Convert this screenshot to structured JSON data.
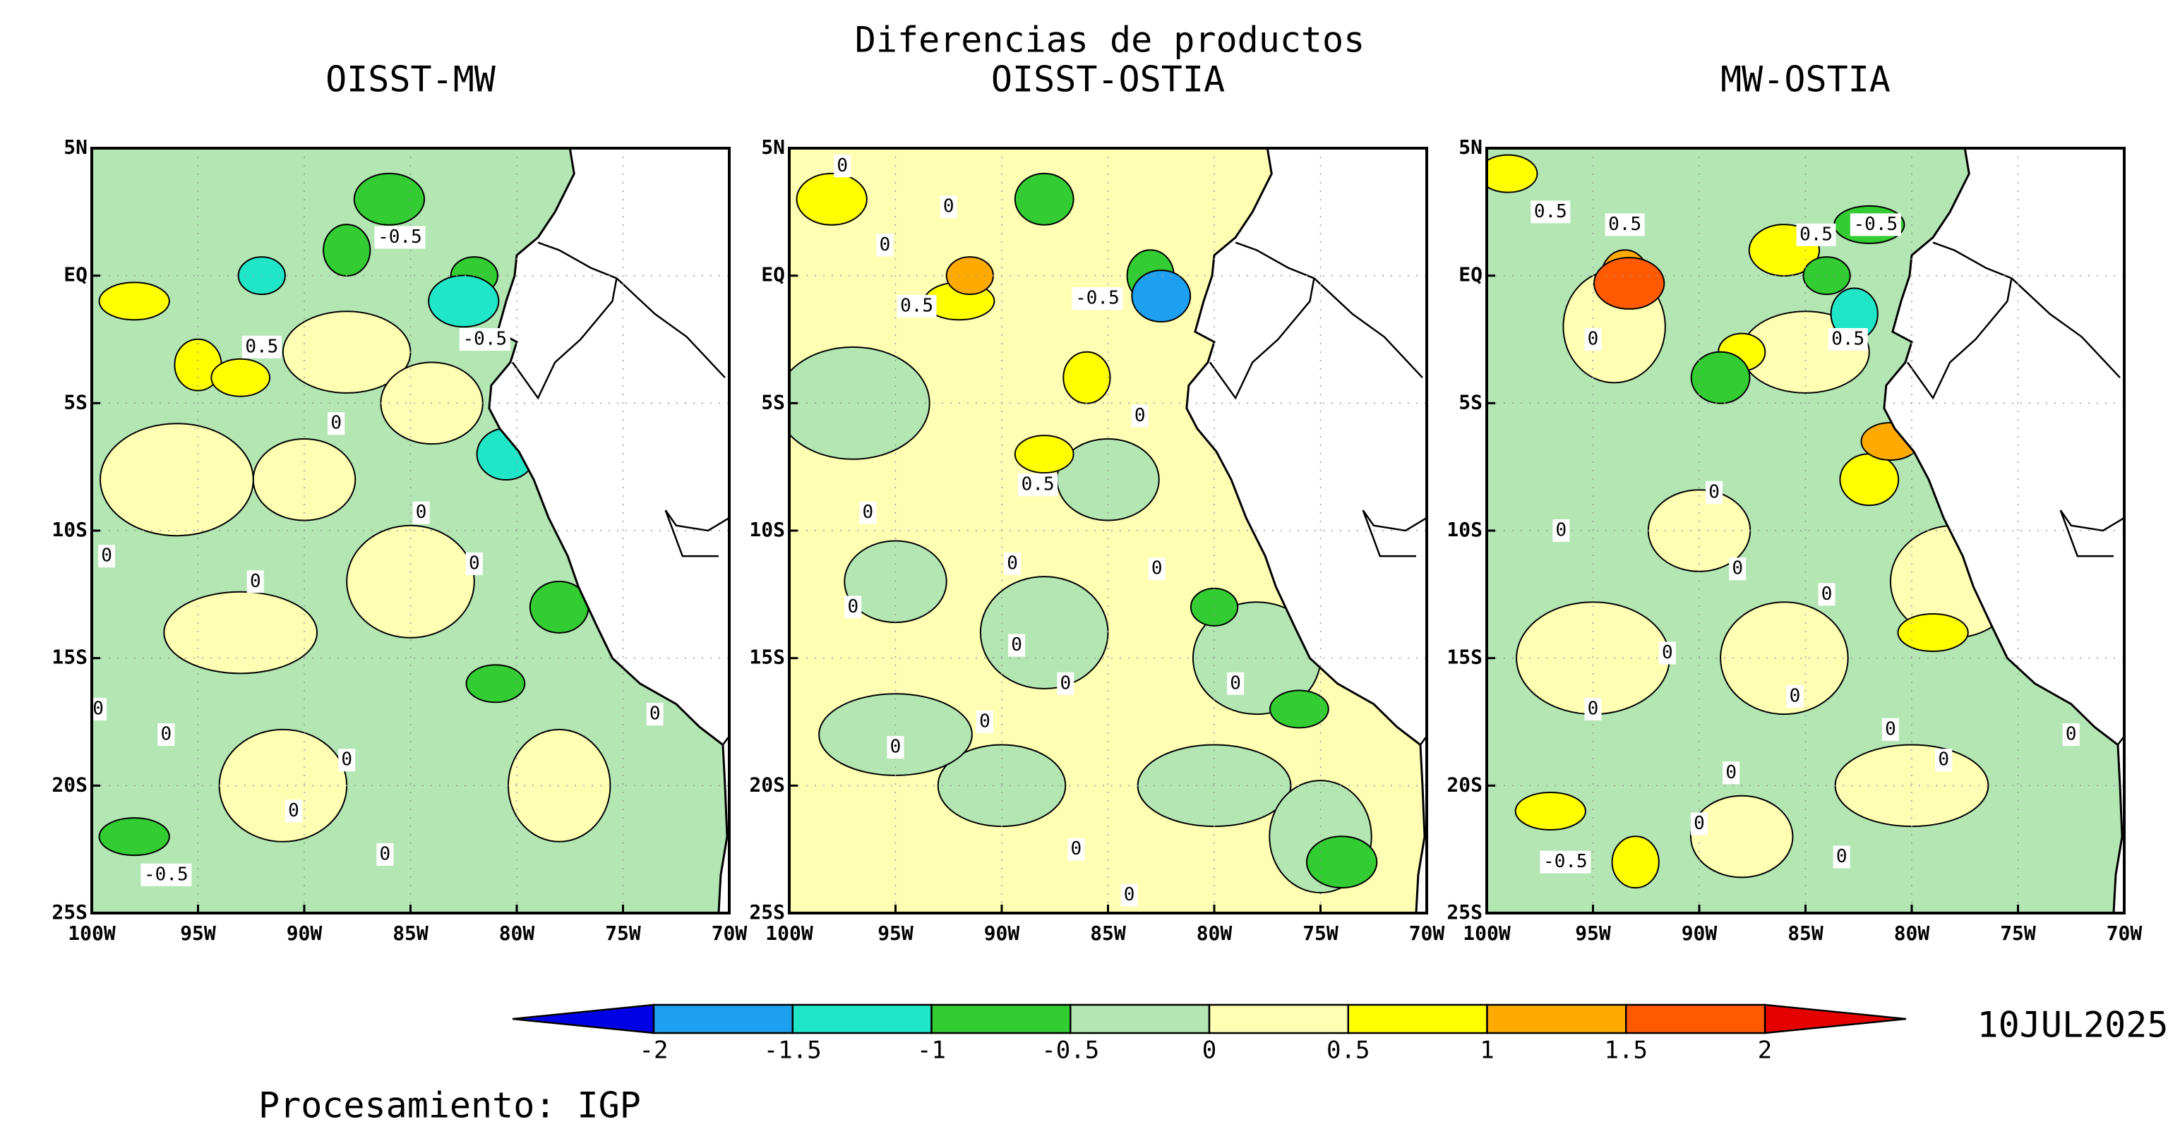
{
  "chart_data": {
    "type": "map",
    "title": "Diferencias de productos",
    "lon_range": [
      -100,
      -70
    ],
    "lat_range": [
      -25,
      5
    ],
    "xticks": [
      {
        "value": -100,
        "label": "100W"
      },
      {
        "value": -95,
        "label": "95W"
      },
      {
        "value": -90,
        "label": "90W"
      },
      {
        "value": -85,
        "label": "85W"
      },
      {
        "value": -80,
        "label": "80W"
      },
      {
        "value": -75,
        "label": "75W"
      },
      {
        "value": -70,
        "label": "70W"
      }
    ],
    "yticks": [
      {
        "value": 5,
        "label": "5N"
      },
      {
        "value": 0,
        "label": "EQ"
      },
      {
        "value": -5,
        "label": "5S"
      },
      {
        "value": -10,
        "label": "10S"
      },
      {
        "value": -15,
        "label": "15S"
      },
      {
        "value": -20,
        "label": "20S"
      },
      {
        "value": -25,
        "label": "25S"
      }
    ],
    "grid": true,
    "colorbar": {
      "levels": [
        -2,
        -1.5,
        -1,
        -0.5,
        0,
        0.5,
        1,
        1.5,
        2
      ],
      "colors": [
        "#0000e6",
        "#1ea0f0",
        "#20e6c8",
        "#33cc33",
        "#b4e6b4",
        "#ffffb4",
        "#ffff00",
        "#ffaa00",
        "#ff5a00",
        "#e60000"
      ]
    },
    "date": "10JUL2025",
    "credit": "Procesamiento: IGP",
    "panels": [
      {
        "title": "OISST-MW",
        "background_value": -0.25,
        "patches": [
          {
            "lon": -90,
            "lat": -8,
            "value": 0.25
          },
          {
            "lon": -85,
            "lat": -12,
            "value": 0.25
          },
          {
            "lon": -93,
            "lat": -14,
            "value": 0.25
          },
          {
            "lon": -78,
            "lat": -20,
            "value": 0.25
          },
          {
            "lon": -88,
            "lat": -3,
            "value": 0.25
          },
          {
            "lon": -96,
            "lat": -8,
            "value": 0.25
          },
          {
            "lon": -84,
            "lat": -5,
            "value": 0.25
          },
          {
            "lon": -91,
            "lat": -20,
            "value": 0.25
          },
          {
            "lon": -98,
            "lat": -1,
            "value": 0.75
          },
          {
            "lon": -95,
            "lat": -3.5,
            "value": 0.75
          },
          {
            "lon": -93,
            "lat": -4,
            "value": 0.75
          },
          {
            "lon": -86,
            "lat": 3,
            "value": -0.75
          },
          {
            "lon": -82,
            "lat": 0,
            "value": -0.75
          },
          {
            "lon": -78,
            "lat": -13,
            "value": -0.75
          },
          {
            "lon": -98,
            "lat": -22,
            "value": -0.75
          },
          {
            "lon": -88,
            "lat": 1,
            "value": -0.75
          },
          {
            "lon": -81,
            "lat": -16,
            "value": -0.75
          },
          {
            "lon": -82.5,
            "lat": -1,
            "value": -1.25
          },
          {
            "lon": -92,
            "lat": 0,
            "value": -1.25
          },
          {
            "lon": -80.5,
            "lat": -7,
            "value": -1.25
          }
        ],
        "contour_labels": [
          {
            "value": -0.5,
            "lon": -85.5,
            "lat": 1.5
          },
          {
            "value": -0.5,
            "lon": -81.5,
            "lat": -2.5
          },
          {
            "value": 0.5,
            "lon": -92,
            "lat": -2.8
          },
          {
            "value": 0,
            "lon": -88.5,
            "lat": -5.8
          },
          {
            "value": 0,
            "lon": -84.5,
            "lat": -9.3
          },
          {
            "value": 0,
            "lon": -99.3,
            "lat": -11
          },
          {
            "value": 0,
            "lon": -92.3,
            "lat": -12
          },
          {
            "value": 0,
            "lon": -82,
            "lat": -11.3
          },
          {
            "value": 0,
            "lon": -99.7,
            "lat": -17
          },
          {
            "value": 0,
            "lon": -96.5,
            "lat": -18
          },
          {
            "value": 0,
            "lon": -88,
            "lat": -19
          },
          {
            "value": 0,
            "lon": -90.5,
            "lat": -21
          },
          {
            "value": 0,
            "lon": -86.2,
            "lat": -22.7
          },
          {
            "value": 0,
            "lon": -73.5,
            "lat": -17.2
          },
          {
            "value": -0.5,
            "lon": -96.5,
            "lat": -23.5
          }
        ]
      },
      {
        "title": "OISST-OSTIA",
        "background_value": 0.25,
        "patches": [
          {
            "lon": -95,
            "lat": -12,
            "value": -0.25
          },
          {
            "lon": -88,
            "lat": -14,
            "value": -0.25
          },
          {
            "lon": -80,
            "lat": -20,
            "value": -0.25
          },
          {
            "lon": -75,
            "lat": -22,
            "value": -0.25
          },
          {
            "lon": -90,
            "lat": -20,
            "value": -0.25
          },
          {
            "lon": -97,
            "lat": -5,
            "value": -0.25
          },
          {
            "lon": -85,
            "lat": -8,
            "value": -0.25
          },
          {
            "lon": -78,
            "lat": -15,
            "value": -0.25
          },
          {
            "lon": -95,
            "lat": -18,
            "value": -0.25
          },
          {
            "lon": -83,
            "lat": 0,
            "value": -0.75
          },
          {
            "lon": -76,
            "lat": -17,
            "value": -0.75
          },
          {
            "lon": -74,
            "lat": -23,
            "value": -0.75
          },
          {
            "lon": -80,
            "lat": -13,
            "value": -0.75
          },
          {
            "lon": -88,
            "lat": 3,
            "value": -0.75
          },
          {
            "lon": -92,
            "lat": -1,
            "value": 0.75
          },
          {
            "lon": -86,
            "lat": -4,
            "value": 0.75
          },
          {
            "lon": -88,
            "lat": -7,
            "value": 0.75
          },
          {
            "lon": -98,
            "lat": 3,
            "value": 0.75
          },
          {
            "lon": -91.5,
            "lat": 0,
            "value": 1.25
          },
          {
            "lon": -82.5,
            "lat": -0.8,
            "value": -1.75
          }
        ],
        "contour_labels": [
          {
            "value": 0,
            "lon": -97.5,
            "lat": 4.3
          },
          {
            "value": 0,
            "lon": -92.5,
            "lat": 2.7
          },
          {
            "value": 0,
            "lon": -95.5,
            "lat": 1.2
          },
          {
            "value": 0.5,
            "lon": -94,
            "lat": -1.2
          },
          {
            "value": -0.5,
            "lon": -85.5,
            "lat": -0.9
          },
          {
            "value": 0,
            "lon": -83.5,
            "lat": -5.5
          },
          {
            "value": 0.5,
            "lon": -88.3,
            "lat": -8.2
          },
          {
            "value": 0,
            "lon": -96.3,
            "lat": -9.3
          },
          {
            "value": 0,
            "lon": -89.5,
            "lat": -11.3
          },
          {
            "value": 0,
            "lon": -82.7,
            "lat": -11.5
          },
          {
            "value": 0,
            "lon": -97,
            "lat": -13
          },
          {
            "value": 0,
            "lon": -89.3,
            "lat": -14.5
          },
          {
            "value": 0,
            "lon": -87,
            "lat": -16
          },
          {
            "value": 0,
            "lon": -79,
            "lat": -16
          },
          {
            "value": 0,
            "lon": -90.8,
            "lat": -17.5
          },
          {
            "value": 0,
            "lon": -95,
            "lat": -18.5
          },
          {
            "value": 0,
            "lon": -86.5,
            "lat": -22.5
          },
          {
            "value": 0,
            "lon": -84,
            "lat": -24.3
          }
        ]
      },
      {
        "title": "MW-OSTIA",
        "background_value": -0.25,
        "patches": [
          {
            "lon": -90,
            "lat": -10,
            "value": 0.25
          },
          {
            "lon": -86,
            "lat": -15,
            "value": 0.25
          },
          {
            "lon": -80,
            "lat": -20,
            "value": 0.25
          },
          {
            "lon": -94,
            "lat": -2,
            "value": 0.25
          },
          {
            "lon": -85,
            "lat": -3,
            "value": 0.25
          },
          {
            "lon": -95,
            "lat": -15,
            "value": 0.25
          },
          {
            "lon": -88,
            "lat": -22,
            "value": 0.25
          },
          {
            "lon": -78,
            "lat": -12,
            "value": 0.25
          },
          {
            "lon": -97,
            "lat": -21,
            "value": 0.75
          },
          {
            "lon": -93,
            "lat": -23,
            "value": 0.75
          },
          {
            "lon": -99,
            "lat": 4,
            "value": 0.75
          },
          {
            "lon": -86,
            "lat": 1,
            "value": 0.75
          },
          {
            "lon": -88,
            "lat": -3,
            "value": 0.75
          },
          {
            "lon": -82,
            "lat": -8,
            "value": 0.75
          },
          {
            "lon": -79,
            "lat": -14,
            "value": 0.75
          },
          {
            "lon": -93.5,
            "lat": 0,
            "value": 1.25
          },
          {
            "lon": -81,
            "lat": -6.5,
            "value": 1.25
          },
          {
            "lon": -93.3,
            "lat": -0.3,
            "value": 1.75
          },
          {
            "lon": -84,
            "lat": 0,
            "value": -0.75
          },
          {
            "lon": -89,
            "lat": -4,
            "value": -0.75
          },
          {
            "lon": -82,
            "lat": 2,
            "value": -0.75
          },
          {
            "lon": -82.7,
            "lat": -1.5,
            "value": -1.25
          }
        ],
        "contour_labels": [
          {
            "value": 0.5,
            "lon": -97,
            "lat": 2.5
          },
          {
            "value": 0.5,
            "lon": -93.5,
            "lat": 2
          },
          {
            "value": 0.5,
            "lon": -84.5,
            "lat": 1.6
          },
          {
            "value": -0.5,
            "lon": -81.7,
            "lat": 2
          },
          {
            "value": 0,
            "lon": -95,
            "lat": -2.5
          },
          {
            "value": 0.5,
            "lon": -83,
            "lat": -2.5
          },
          {
            "value": 0,
            "lon": -89.3,
            "lat": -8.5
          },
          {
            "value": 0,
            "lon": -96.5,
            "lat": -10
          },
          {
            "value": 0,
            "lon": -88.2,
            "lat": -11.5
          },
          {
            "value": 0,
            "lon": -84,
            "lat": -12.5
          },
          {
            "value": 0,
            "lon": -91.5,
            "lat": -14.8
          },
          {
            "value": 0,
            "lon": -85.5,
            "lat": -16.5
          },
          {
            "value": 0,
            "lon": -95,
            "lat": -17
          },
          {
            "value": 0,
            "lon": -81,
            "lat": -17.8
          },
          {
            "value": 0,
            "lon": -88.5,
            "lat": -19.5
          },
          {
            "value": 0,
            "lon": -78.5,
            "lat": -19
          },
          {
            "value": 0,
            "lon": -90,
            "lat": -21.5
          },
          {
            "value": 0,
            "lon": -83.3,
            "lat": -22.8
          },
          {
            "value": 0,
            "lon": -72.5,
            "lat": -18
          },
          {
            "value": -0.5,
            "lon": -96.3,
            "lat": -23
          }
        ]
      }
    ]
  }
}
